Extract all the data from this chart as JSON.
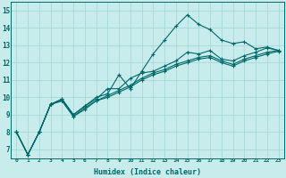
{
  "xlabel": "Humidex (Indice chaleur)",
  "background_color": "#c8ecec",
  "grid_color": "#a8d8d8",
  "line_color": "#006868",
  "xlim": [
    -0.5,
    23.5
  ],
  "ylim": [
    6.5,
    15.5
  ],
  "xticks": [
    0,
    1,
    2,
    3,
    4,
    5,
    6,
    7,
    8,
    9,
    10,
    11,
    12,
    13,
    14,
    15,
    16,
    17,
    18,
    19,
    20,
    21,
    22,
    23
  ],
  "yticks": [
    7,
    8,
    9,
    10,
    11,
    12,
    13,
    14,
    15
  ],
  "line1": [
    8.0,
    6.7,
    8.0,
    9.6,
    9.9,
    9.0,
    9.5,
    10.0,
    10.2,
    11.3,
    10.5,
    11.5,
    12.5,
    13.3,
    14.1,
    14.75,
    14.2,
    13.9,
    13.3,
    13.1,
    13.2,
    12.8,
    12.9,
    12.7
  ],
  "line2": [
    8.0,
    6.7,
    8.0,
    9.6,
    9.9,
    9.0,
    9.5,
    9.9,
    10.5,
    10.5,
    11.1,
    11.4,
    11.5,
    11.8,
    12.1,
    12.6,
    12.5,
    12.7,
    12.2,
    12.1,
    12.4,
    12.6,
    12.85,
    12.7
  ],
  "line3": [
    8.0,
    6.7,
    8.0,
    9.6,
    9.8,
    8.9,
    9.4,
    9.8,
    10.1,
    10.4,
    10.7,
    11.1,
    11.4,
    11.6,
    11.9,
    12.1,
    12.3,
    12.4,
    12.1,
    11.9,
    12.2,
    12.4,
    12.6,
    12.7
  ],
  "line4": [
    8.0,
    6.7,
    8.0,
    9.6,
    9.8,
    8.9,
    9.3,
    9.8,
    10.0,
    10.3,
    10.6,
    11.0,
    11.3,
    11.5,
    11.8,
    12.0,
    12.2,
    12.3,
    12.0,
    11.8,
    12.1,
    12.3,
    12.5,
    12.65
  ]
}
